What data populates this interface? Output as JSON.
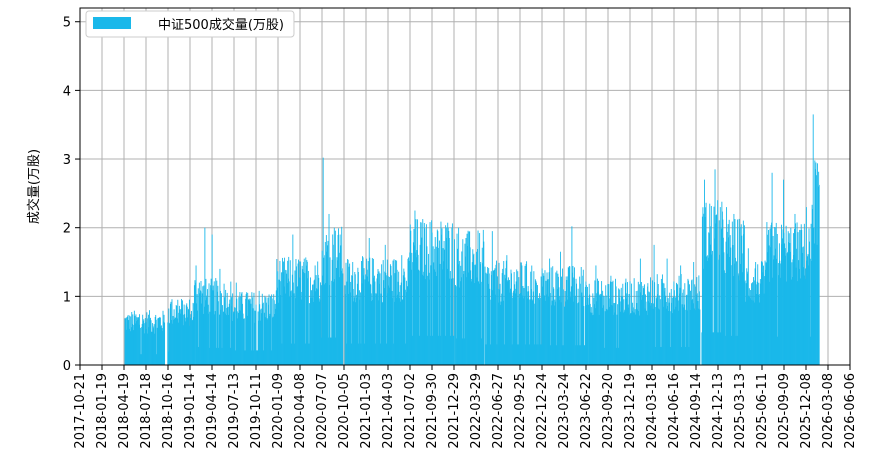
{
  "chart_data": {
    "type": "bar",
    "ylabel": "成交量(万股)",
    "xlabel": "",
    "ylim": [
      0,
      5.2
    ],
    "yticks": [
      0,
      1,
      2,
      3,
      4,
      5
    ],
    "xlim": [
      "2017-10-21",
      "2026-06-06"
    ],
    "xticks": [
      "2017-10-21",
      "2018-01-19",
      "2018-04-19",
      "2018-07-18",
      "2018-10-16",
      "2019-01-14",
      "2019-04-14",
      "2019-07-13",
      "2019-10-11",
      "2020-01-09",
      "2020-04-08",
      "2020-07-07",
      "2020-10-05",
      "2021-01-03",
      "2021-04-03",
      "2021-07-02",
      "2021-09-30",
      "2021-12-29",
      "2022-03-29",
      "2022-06-27",
      "2022-09-25",
      "2022-12-24",
      "2023-03-24",
      "2023-06-22",
      "2023-09-20",
      "2023-12-19",
      "2024-03-18",
      "2024-06-16",
      "2024-09-14",
      "2024-12-13",
      "2025-03-13",
      "2025-06-11",
      "2025-09-09",
      "2025-12-08",
      "2026-03-08",
      "2026-06-06"
    ],
    "grid": true,
    "legend_position": "top-left",
    "series": [
      {
        "name": "中证500成交量(万股)",
        "color": "#1ab8ea",
        "segments": [
          {
            "start": "2018-04-23",
            "end": "2018-10-02",
            "base": 0.63,
            "peaks": [
              0.72,
              0.74,
              0.66,
              0.7
            ]
          },
          {
            "start": "2018-10-15",
            "end": "2019-01-31",
            "base": 0.78,
            "peaks": [
              0.92,
              0.95,
              0.88,
              0.74
            ]
          },
          {
            "start": "2019-02-01",
            "end": "2019-02-28",
            "base": 1.05,
            "peaks": [
              1.45,
              1.2
            ]
          },
          {
            "start": "2019-03-01",
            "end": "2019-06-30",
            "base": 1.0,
            "peaks": [
              2.0,
              1.9,
              1.4,
              1.05
            ]
          },
          {
            "start": "2019-07-01",
            "end": "2019-12-31",
            "base": 0.85,
            "peaks": [
              1.2,
              1.05,
              1.08,
              1.0
            ]
          },
          {
            "start": "2020-01-02",
            "end": "2020-06-30",
            "base": 1.25,
            "peaks": [
              1.35,
              1.9,
              1.5,
              1.45
            ]
          },
          {
            "start": "2020-07-01",
            "end": "2020-09-30",
            "base": 1.6,
            "peaks": [
              3.02,
              2.2,
              2.0,
              1.9
            ]
          },
          {
            "start": "2020-10-09",
            "end": "2021-06-30",
            "base": 1.25,
            "peaks": [
              1.5,
              1.85,
              1.75,
              1.6
            ]
          },
          {
            "start": "2021-07-01",
            "end": "2021-12-31",
            "base": 1.7,
            "peaks": [
              2.25,
              2.05,
              1.95,
              1.85
            ]
          },
          {
            "start": "2022-01-04",
            "end": "2022-04-30",
            "base": 1.55,
            "peaks": [
              2.0,
              1.85,
              1.6,
              1.5
            ]
          },
          {
            "start": "2022-05-05",
            "end": "2022-12-31",
            "base": 1.2,
            "peaks": [
              1.95,
              1.6,
              1.45,
              1.2
            ]
          },
          {
            "start": "2023-01-03",
            "end": "2023-06-30",
            "base": 1.15,
            "peaks": [
              1.55,
              1.65,
              2.02,
              1.3
            ]
          },
          {
            "start": "2023-07-03",
            "end": "2024-02-29",
            "base": 1.0,
            "peaks": [
              1.45,
              1.3,
              1.2,
              1.55
            ]
          },
          {
            "start": "2024-03-01",
            "end": "2024-09-30",
            "base": 1.05,
            "peaks": [
              1.75,
              1.55,
              1.45,
              1.5
            ]
          },
          {
            "start": "2024-10-08",
            "end": "2024-12-31",
            "base": 1.9,
            "peaks": [
              2.7,
              2.35,
              2.85,
              2.3
            ]
          },
          {
            "start": "2025-01-02",
            "end": "2025-03-31",
            "base": 1.7,
            "peaks": [
              2.3,
              2.2,
              2.05
            ]
          },
          {
            "start": "2025-04-01",
            "end": "2025-06-30",
            "base": 1.2,
            "peaks": [
              1.7,
              1.5,
              1.35
            ]
          },
          {
            "start": "2025-07-01",
            "end": "2025-12-31",
            "base": 1.65,
            "peaks": [
              2.8,
              2.7,
              2.2,
              2.3
            ]
          },
          {
            "start": "2026-01-02",
            "end": "2026-01-31",
            "base": 2.4,
            "peaks": [
              3.65,
              2.95,
              2.6
            ]
          }
        ]
      }
    ]
  }
}
